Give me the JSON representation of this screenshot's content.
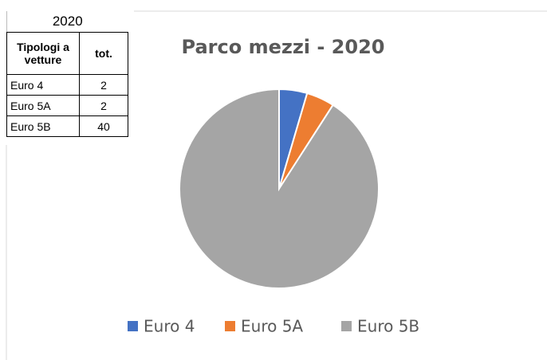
{
  "table": {
    "title": "2020",
    "headers": [
      "Tipologi a vetture",
      "tot."
    ]
  },
  "chart_data": {
    "type": "pie",
    "title": "Parco mezzi - 2020",
    "categories": [
      "Euro 4",
      "Euro 5A",
      "Euro 5B"
    ],
    "values": [
      2,
      2,
      40
    ],
    "colors": [
      "#4472c4",
      "#ed7d31",
      "#a5a5a5"
    ],
    "legend": "bottom"
  }
}
